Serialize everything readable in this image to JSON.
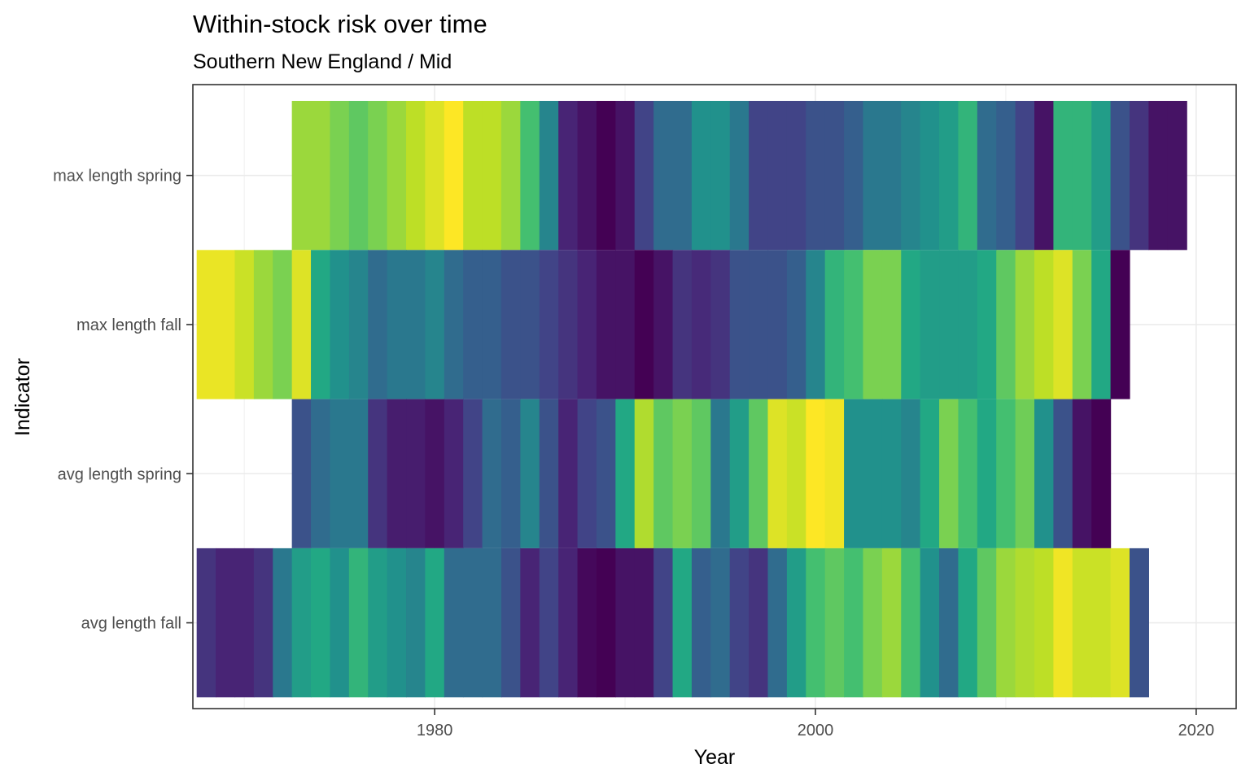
{
  "chart_data": {
    "type": "heatmap",
    "title": "Within-stock risk over time",
    "subtitle": "Southern New England / Mid",
    "xlabel": "Year",
    "ylabel": "Indicator",
    "xlim": [
      1967.3,
      2022.1
    ],
    "x_ticks": [
      1980,
      2000,
      2020
    ],
    "x_tick_labels": [
      "1980",
      "2000",
      "2020"
    ],
    "grid": true,
    "legend": "none",
    "color_scale": "viridis",
    "value_range": [
      0,
      1
    ],
    "rows": [
      {
        "indicator": "max length spring",
        "start_year": 1973,
        "values": [
          0.85,
          0.85,
          0.8,
          0.75,
          0.8,
          0.85,
          0.9,
          0.95,
          1.0,
          0.9,
          0.9,
          0.85,
          0.7,
          0.45,
          0.1,
          0.05,
          0.0,
          0.05,
          0.2,
          0.35,
          0.35,
          0.5,
          0.5,
          0.4,
          0.2,
          0.2,
          0.2,
          0.25,
          0.25,
          0.3,
          0.4,
          0.4,
          0.45,
          0.5,
          0.55,
          0.65,
          0.35,
          0.3,
          0.2,
          0.05,
          0.65,
          0.65,
          0.55,
          0.25,
          0.15,
          0.05,
          0.05
        ]
      },
      {
        "indicator": "max length fall",
        "start_year": 1968,
        "values": [
          0.97,
          0.97,
          0.92,
          0.85,
          0.8,
          0.95,
          0.6,
          0.5,
          0.45,
          0.35,
          0.4,
          0.4,
          0.45,
          0.35,
          0.3,
          0.3,
          0.25,
          0.25,
          0.2,
          0.15,
          0.1,
          0.05,
          0.05,
          0.0,
          0.05,
          0.15,
          0.12,
          0.15,
          0.25,
          0.25,
          0.25,
          0.3,
          0.45,
          0.65,
          0.7,
          0.8,
          0.8,
          0.6,
          0.55,
          0.55,
          0.55,
          0.6,
          0.75,
          0.85,
          0.9,
          0.95,
          0.8,
          0.6,
          0.0
        ]
      },
      {
        "indicator": "avg length spring",
        "start_year": 1973,
        "values": [
          0.25,
          0.35,
          0.4,
          0.4,
          0.15,
          0.08,
          0.08,
          0.05,
          0.1,
          0.2,
          0.35,
          0.3,
          0.45,
          0.25,
          0.1,
          0.2,
          0.25,
          0.6,
          0.88,
          0.75,
          0.8,
          0.75,
          0.4,
          0.55,
          0.75,
          0.95,
          0.92,
          1.0,
          0.98,
          0.5,
          0.5,
          0.5,
          0.45,
          0.6,
          0.8,
          0.7,
          0.6,
          0.7,
          0.78,
          0.5,
          0.25,
          0.05,
          0.0
        ]
      },
      {
        "indicator": "avg length fall",
        "start_year": 1968,
        "values": [
          0.15,
          0.1,
          0.1,
          0.15,
          0.4,
          0.55,
          0.6,
          0.5,
          0.65,
          0.55,
          0.5,
          0.45,
          0.6,
          0.35,
          0.35,
          0.35,
          0.25,
          0.1,
          0.2,
          0.1,
          0.02,
          0.0,
          0.05,
          0.05,
          0.2,
          0.6,
          0.3,
          0.35,
          0.2,
          0.15,
          0.35,
          0.55,
          0.7,
          0.75,
          0.7,
          0.8,
          0.85,
          0.7,
          0.5,
          0.35,
          0.6,
          0.75,
          0.85,
          0.88,
          0.9,
          0.98,
          0.92,
          0.92,
          0.95,
          0.25
        ]
      }
    ]
  }
}
